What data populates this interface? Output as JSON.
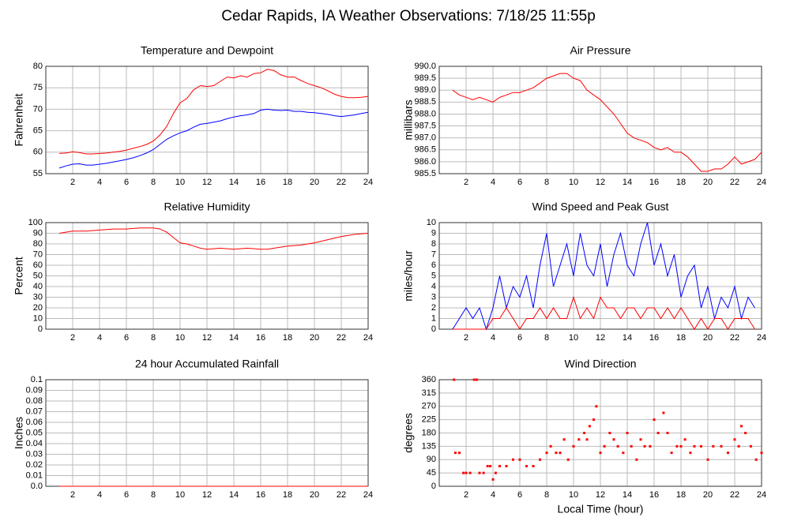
{
  "title": "Cedar Rapids, IA Weather Observations: 7/18/25 11:55p",
  "chart_data": [
    {
      "type": "line",
      "title": "Temperature and Dewpoint",
      "ylabel": "Fahrenheit",
      "grid": true,
      "xlim": [
        0,
        24
      ],
      "xticks": [
        2,
        4,
        6,
        8,
        10,
        12,
        14,
        16,
        18,
        20,
        22,
        24
      ],
      "ylim": [
        55,
        80
      ],
      "yticks": [
        55,
        60,
        65,
        70,
        75,
        80
      ],
      "x": [
        1,
        1.5,
        2,
        2.5,
        3,
        3.5,
        4,
        4.5,
        5,
        5.5,
        6,
        6.5,
        7,
        7.5,
        8,
        8.5,
        9,
        9.5,
        10,
        10.5,
        11,
        11.5,
        12,
        12.5,
        13,
        13.5,
        14,
        14.5,
        15,
        15.5,
        16,
        16.5,
        17,
        17.5,
        18,
        18.5,
        19,
        19.5,
        20,
        20.5,
        21,
        21.5,
        22,
        22.5,
        23,
        23.5,
        24
      ],
      "series": [
        {
          "color": "#ff0000",
          "values": [
            59.7,
            59.8,
            60.1,
            59.9,
            59.6,
            59.6,
            59.7,
            59.8,
            60.0,
            60.2,
            60.5,
            60.9,
            61.3,
            61.8,
            62.6,
            64,
            66,
            69,
            71.5,
            72.5,
            74.5,
            75.5,
            75.3,
            75.5,
            76.5,
            77.5,
            77.3,
            77.8,
            77.5,
            78.3,
            78.5,
            79.3,
            79,
            78,
            77.5,
            77.5,
            76.7,
            76,
            75.5,
            75,
            74.3,
            73.5,
            73,
            72.7,
            72.7,
            72.8,
            73
          ]
        },
        {
          "color": "#0000ff",
          "values": [
            56.3,
            56.8,
            57.2,
            57.3,
            57,
            57,
            57.2,
            57.4,
            57.7,
            58,
            58.3,
            58.7,
            59.2,
            59.8,
            60.6,
            61.8,
            63,
            63.8,
            64.5,
            65,
            65.8,
            66.5,
            66.7,
            67,
            67.3,
            67.8,
            68.2,
            68.5,
            68.7,
            69,
            69.8,
            70,
            69.8,
            69.7,
            69.8,
            69.5,
            69.5,
            69.3,
            69.2,
            69,
            68.8,
            68.5,
            68.3,
            68.5,
            68.7,
            69,
            69.3
          ]
        }
      ]
    },
    {
      "type": "line",
      "title": "Air Pressure",
      "ylabel": "millibars",
      "grid": true,
      "xlim": [
        0,
        24
      ],
      "xticks": [
        2,
        4,
        6,
        8,
        10,
        12,
        14,
        16,
        18,
        20,
        22,
        24
      ],
      "ylim": [
        985.5,
        990
      ],
      "yticks": [
        {
          "value": 985.5,
          "label": "985.5"
        },
        {
          "value": 986,
          "label": "986.0"
        },
        {
          "value": 986.5,
          "label": "986.5"
        },
        {
          "value": 987,
          "label": "987.0"
        },
        {
          "value": 987.5,
          "label": "987.5"
        },
        {
          "value": 988,
          "label": "988.0"
        },
        {
          "value": 988.5,
          "label": "988.5"
        },
        {
          "value": 989,
          "label": "989.0"
        },
        {
          "value": 989.5,
          "label": "989.5"
        },
        {
          "value": 990,
          "label": "990.0"
        }
      ],
      "x": [
        1,
        1.5,
        2,
        2.5,
        3,
        3.5,
        4,
        4.5,
        5,
        5.5,
        6,
        6.5,
        7,
        7.5,
        8,
        8.5,
        9,
        9.5,
        10,
        10.5,
        11,
        11.5,
        12,
        12.5,
        13,
        13.5,
        14,
        14.5,
        15,
        15.5,
        16,
        16.5,
        17,
        17.5,
        18,
        18.5,
        19,
        19.5,
        20,
        20.5,
        21,
        21.5,
        22,
        22.5,
        23,
        23.5,
        24
      ],
      "series": [
        {
          "color": "#ff0000",
          "values": [
            989,
            988.8,
            988.7,
            988.6,
            988.7,
            988.6,
            988.5,
            988.7,
            988.8,
            988.9,
            988.9,
            989.0,
            989.1,
            989.3,
            989.5,
            989.6,
            989.7,
            989.7,
            989.5,
            989.4,
            989.0,
            988.8,
            988.6,
            988.3,
            988.0,
            987.6,
            987.2,
            987.0,
            986.9,
            986.8,
            986.6,
            986.5,
            986.6,
            986.4,
            986.4,
            986.2,
            985.9,
            985.6,
            985.6,
            985.7,
            985.7,
            985.9,
            986.2,
            985.9,
            986.0,
            986.1,
            986.4
          ]
        }
      ]
    },
    {
      "type": "line",
      "title": "Relative Humidity",
      "ylabel": "Percent",
      "grid": true,
      "xlim": [
        0,
        24
      ],
      "xticks": [
        2,
        4,
        6,
        8,
        10,
        12,
        14,
        16,
        18,
        20,
        22,
        24
      ],
      "ylim": [
        0,
        100
      ],
      "yticks": [
        0,
        10,
        20,
        30,
        40,
        50,
        60,
        70,
        80,
        90,
        100
      ],
      "x": [
        1,
        1.5,
        2,
        3,
        4,
        5,
        6,
        7,
        7.5,
        8,
        8.5,
        9,
        9.5,
        10,
        10.5,
        11,
        11.5,
        12,
        13,
        14,
        15,
        16,
        16.5,
        17,
        18,
        19,
        20,
        21,
        22,
        23,
        24
      ],
      "series": [
        {
          "color": "#ff0000",
          "values": [
            90,
            91,
            92,
            92,
            93,
            94,
            94,
            95,
            95,
            95,
            94,
            91,
            86,
            81,
            80,
            78,
            76,
            75,
            76,
            75,
            76,
            75,
            75,
            76,
            78,
            79,
            81,
            84,
            87,
            89,
            90
          ]
        }
      ]
    },
    {
      "type": "line",
      "title": "Wind Speed and Peak Gust",
      "ylabel": "miles/hour",
      "grid": true,
      "xlim": [
        0,
        24
      ],
      "xticks": [
        2,
        4,
        6,
        8,
        10,
        12,
        14,
        16,
        18,
        20,
        22,
        24
      ],
      "ylim": [
        0,
        10
      ],
      "yticks": [
        0,
        1,
        2,
        3,
        4,
        5,
        6,
        7,
        8,
        9,
        10
      ],
      "x": [
        1,
        1.5,
        2,
        2.5,
        3,
        3.5,
        4,
        4.5,
        5,
        5.5,
        6,
        6.5,
        7,
        7.5,
        8,
        8.5,
        9,
        9.5,
        10,
        10.5,
        11,
        11.5,
        12,
        12.5,
        13,
        13.5,
        14,
        14.5,
        15,
        15.5,
        16,
        16.5,
        17,
        17.5,
        18,
        18.5,
        19,
        19.5,
        20,
        20.5,
        21,
        21.5,
        22,
        22.5,
        23,
        23.5
      ],
      "series": [
        {
          "color": "#0000ff",
          "values": [
            0,
            1,
            2,
            1,
            2,
            0,
            2,
            5,
            2,
            4,
            3,
            5,
            2,
            6,
            9,
            4,
            6,
            8,
            5,
            9,
            6,
            5,
            8,
            4,
            7,
            9,
            6,
            5,
            8,
            10,
            6,
            8,
            5,
            7,
            3,
            5,
            6,
            2,
            4,
            1,
            3,
            2,
            4,
            1,
            3,
            2
          ]
        },
        {
          "color": "#ff0000",
          "values": [
            0,
            0,
            0,
            0,
            0,
            0,
            1,
            1,
            2,
            1,
            0,
            1,
            1,
            2,
            1,
            2,
            1,
            1,
            3,
            1,
            2,
            1,
            3,
            2,
            2,
            1,
            2,
            2,
            1,
            2,
            2,
            1,
            2,
            1,
            2,
            1,
            0,
            1,
            0,
            1,
            1,
            0,
            1,
            1,
            1,
            0
          ]
        }
      ]
    },
    {
      "type": "line",
      "title": "24 hour Accumulated Rainfall",
      "ylabel": "Inches",
      "grid": true,
      "xlim": [
        0,
        24
      ],
      "xticks": [
        2,
        4,
        6,
        8,
        10,
        12,
        14,
        16,
        18,
        20,
        22,
        24
      ],
      "ylim": [
        0,
        0.1
      ],
      "yticks": [
        {
          "value": 0,
          "label": "0.0"
        },
        0.01,
        0.02,
        0.03,
        0.04,
        0.05,
        0.06,
        0.07,
        0.08,
        0.09,
        0.1
      ],
      "x": [
        1,
        24
      ],
      "series": [
        {
          "color": "#ff0000",
          "values": [
            0,
            0
          ]
        }
      ]
    },
    {
      "type": "scatter",
      "title": "Wind Direction",
      "ylabel": "degrees",
      "xlabel": "Local Time (hour)",
      "grid": true,
      "xlim": [
        0,
        24
      ],
      "xticks": [
        2,
        4,
        6,
        8,
        10,
        12,
        14,
        16,
        18,
        20,
        22,
        24
      ],
      "ylim": [
        0,
        360
      ],
      "yticks": [
        0,
        45,
        90,
        135,
        180,
        225,
        270,
        315,
        360
      ],
      "x": [
        1.1,
        1.2,
        1.5,
        1.8,
        2,
        2.3,
        2.6,
        2.8,
        3,
        3.3,
        3.6,
        3.8,
        4,
        4.2,
        4.5,
        5,
        5.5,
        6,
        6.5,
        7,
        7.5,
        8,
        8.3,
        8.7,
        9,
        9.3,
        9.6,
        10,
        10.4,
        10.8,
        11,
        11.2,
        11.5,
        11.7,
        12,
        12.3,
        12.7,
        13,
        13.3,
        13.7,
        14,
        14.3,
        14.7,
        15,
        15.3,
        15.7,
        16,
        16.3,
        16.7,
        17,
        17.3,
        17.7,
        18,
        18.3,
        18.7,
        19,
        19.5,
        20,
        20.4,
        21,
        21.5,
        22,
        22.3,
        22.5,
        22.8,
        23.2,
        23.6,
        24
      ],
      "series": [
        {
          "color": "#ff0000",
          "values": [
            360,
            113,
            113,
            45,
            45,
            45,
            360,
            360,
            45,
            45,
            68,
            68,
            23,
            45,
            68,
            68,
            90,
            90,
            68,
            68,
            90,
            113,
            135,
            113,
            113,
            158,
            90,
            135,
            158,
            180,
            158,
            203,
            225,
            270,
            113,
            135,
            180,
            158,
            135,
            113,
            180,
            135,
            90,
            158,
            135,
            135,
            225,
            180,
            248,
            180,
            113,
            135,
            135,
            158,
            113,
            135,
            135,
            90,
            135,
            135,
            113,
            158,
            135,
            203,
            180,
            135,
            90,
            113
          ]
        }
      ]
    }
  ]
}
